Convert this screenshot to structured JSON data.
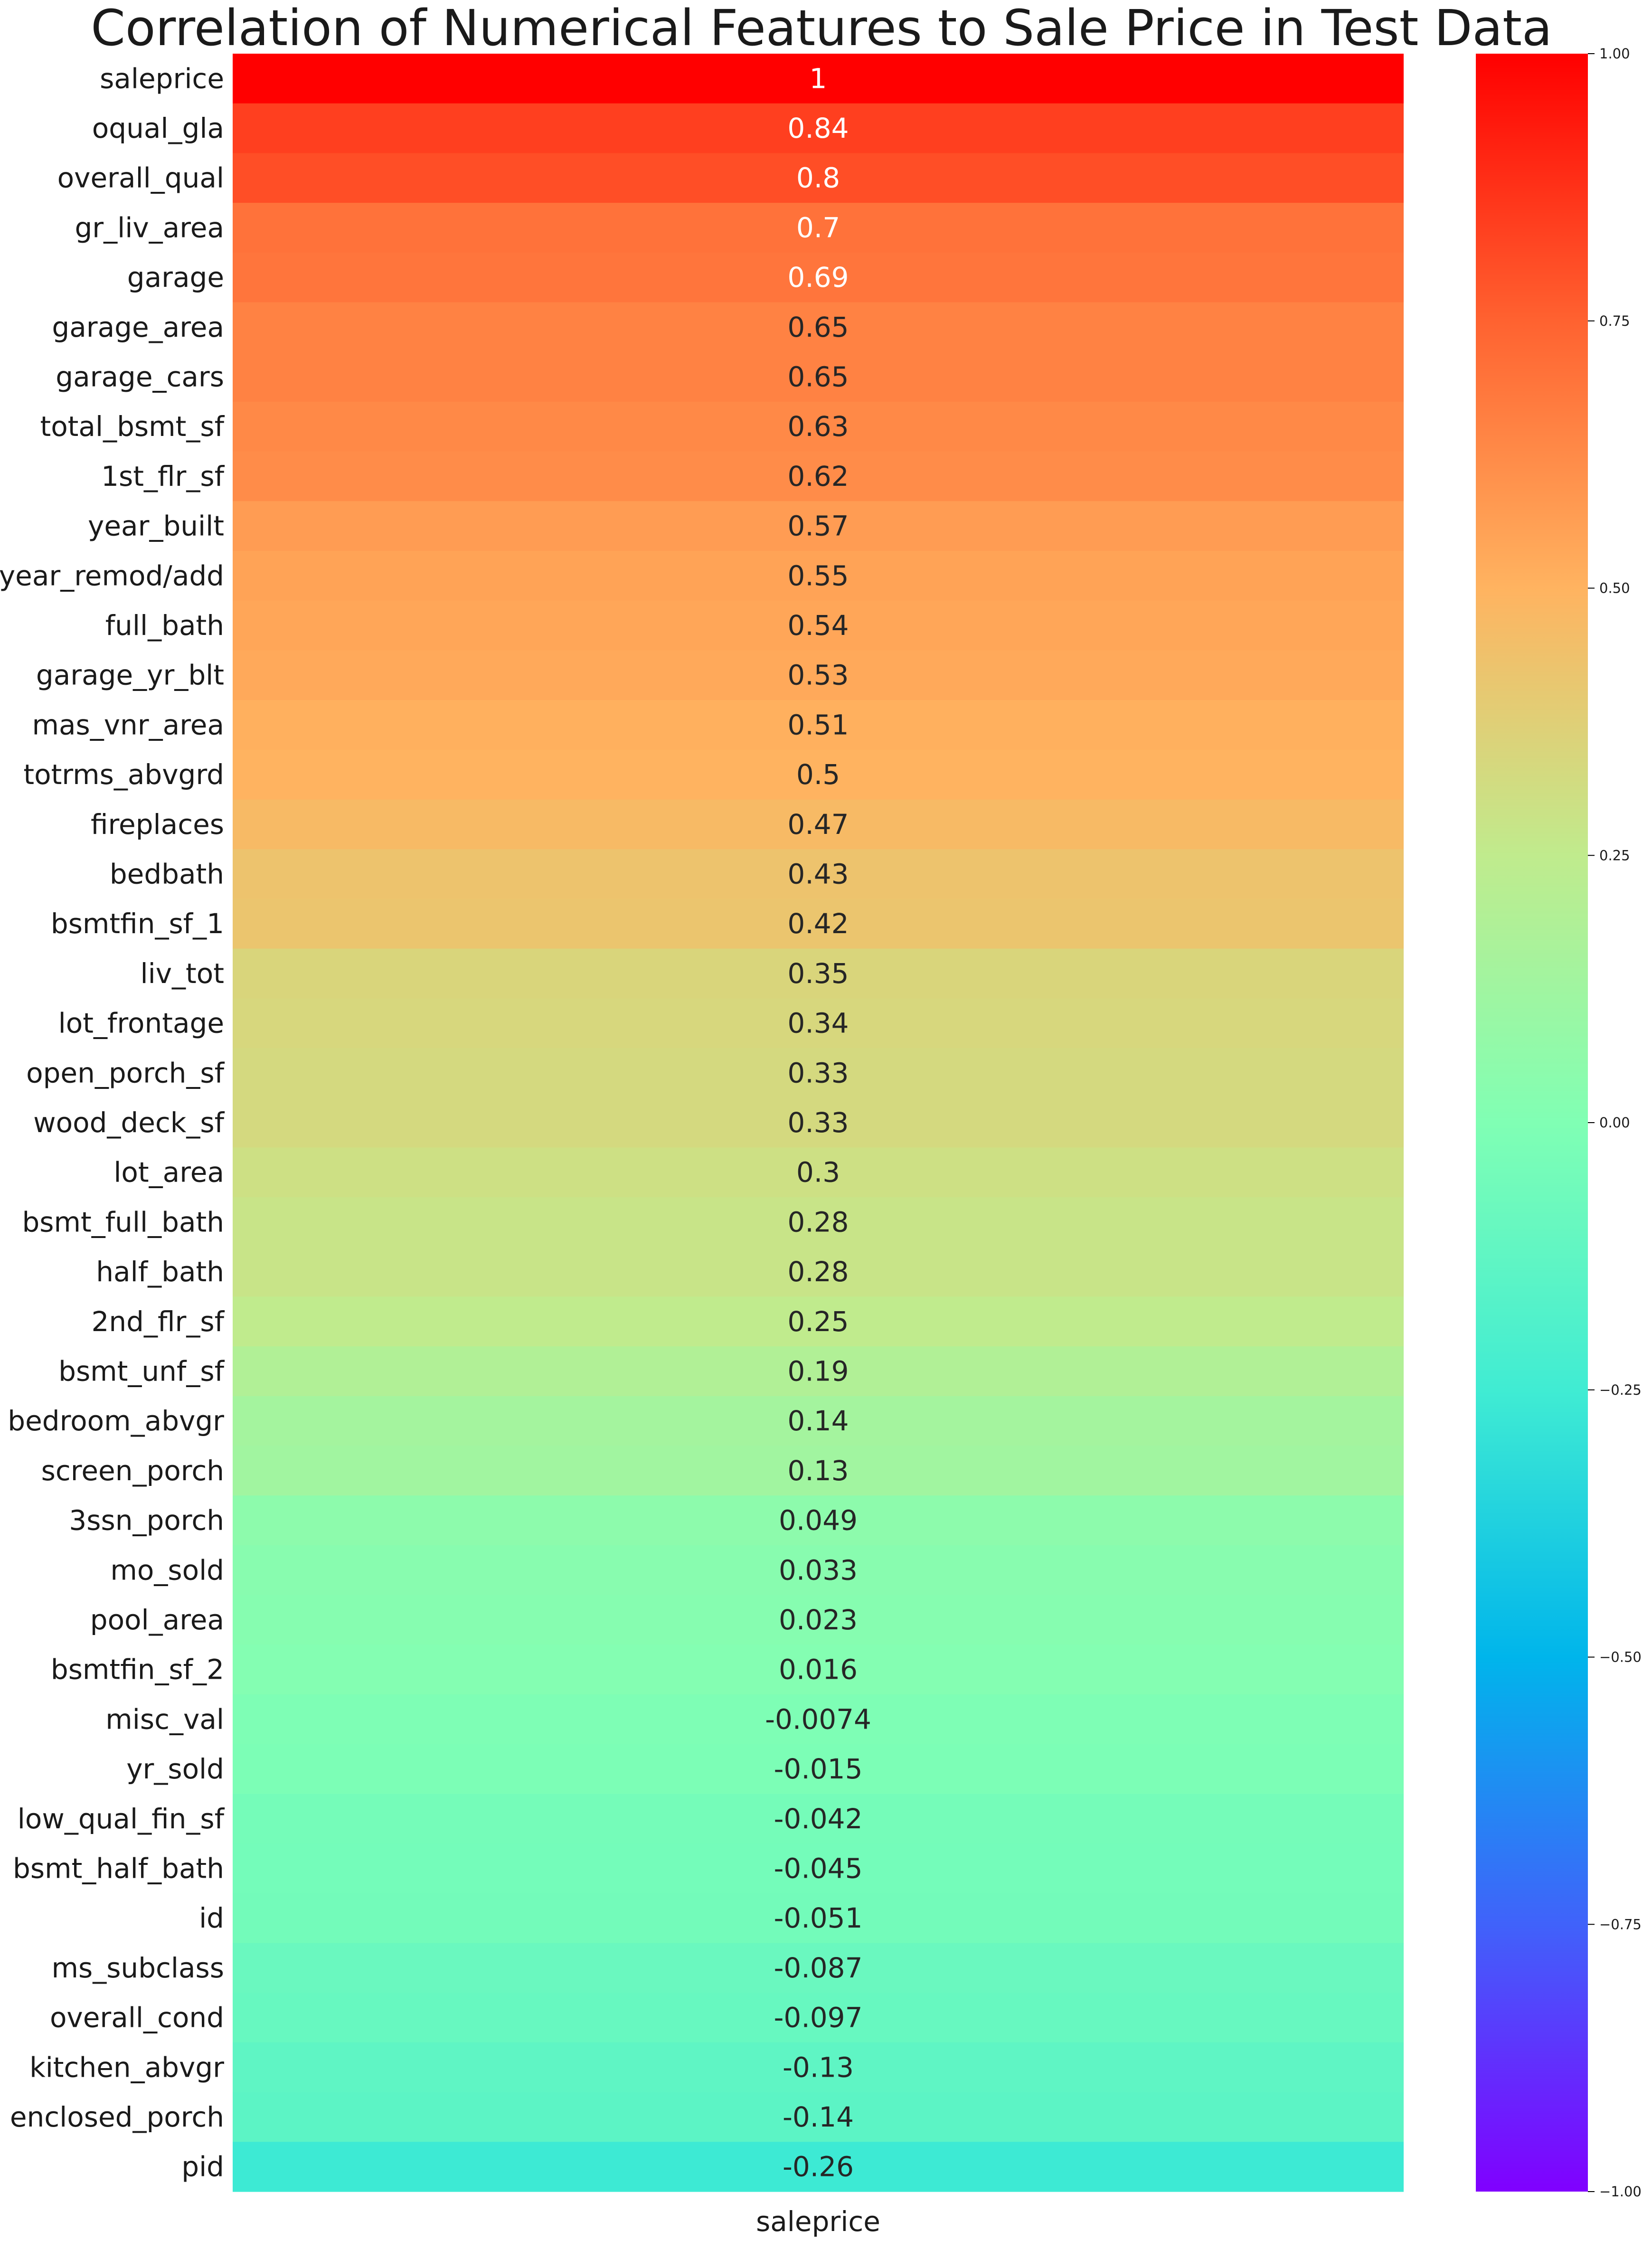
{
  "chart_data": {
    "type": "heatmap",
    "title": "Correlation of Numerical Features to Sale Price in Test Data",
    "columns": [
      "saleprice"
    ],
    "xtick_labels": [
      "saleprice"
    ],
    "rows": [
      "saleprice",
      "oqual_gla",
      "overall_qual",
      "gr_liv_area",
      "garage",
      "garage_area",
      "garage_cars",
      "total_bsmt_sf",
      "1st_flr_sf",
      "year_built",
      "year_remod/add",
      "full_bath",
      "garage_yr_blt",
      "mas_vnr_area",
      "totrms_abvgrd",
      "fireplaces",
      "bedbath",
      "bsmtfin_sf_1",
      "liv_tot",
      "lot_frontage",
      "open_porch_sf",
      "wood_deck_sf",
      "lot_area",
      "bsmt_full_bath",
      "half_bath",
      "2nd_flr_sf",
      "bsmt_unf_sf",
      "bedroom_abvgr",
      "screen_porch",
      "3ssn_porch",
      "mo_sold",
      "pool_area",
      "bsmtfin_sf_2",
      "misc_val",
      "yr_sold",
      "low_qual_fin_sf",
      "bsmt_half_bath",
      "id",
      "ms_subclass",
      "overall_cond",
      "kitchen_abvgr",
      "enclosed_porch",
      "pid"
    ],
    "values": [
      1,
      0.84,
      0.8,
      0.7,
      0.69,
      0.65,
      0.65,
      0.63,
      0.62,
      0.57,
      0.55,
      0.54,
      0.53,
      0.51,
      0.5,
      0.47,
      0.43,
      0.42,
      0.35,
      0.34,
      0.33,
      0.33,
      0.3,
      0.28,
      0.28,
      0.25,
      0.19,
      0.14,
      0.13,
      0.049,
      0.033,
      0.023,
      0.016,
      -0.0074,
      -0.015,
      -0.042,
      -0.045,
      -0.051,
      -0.087,
      -0.097,
      -0.13,
      -0.14,
      -0.26
    ],
    "value_labels": [
      "1",
      "0.84",
      "0.8",
      "0.7",
      "0.69",
      "0.65",
      "0.65",
      "0.63",
      "0.62",
      "0.57",
      "0.55",
      "0.54",
      "0.53",
      "0.51",
      "0.5",
      "0.47",
      "0.43",
      "0.42",
      "0.35",
      "0.34",
      "0.33",
      "0.33",
      "0.3",
      "0.28",
      "0.28",
      "0.25",
      "0.19",
      "0.14",
      "0.13",
      "0.049",
      "0.033",
      "0.023",
      "0.016",
      "-0.0074",
      "-0.015",
      "-0.042",
      "-0.045",
      "-0.051",
      "-0.087",
      "-0.097",
      "-0.13",
      "-0.14",
      "-0.26"
    ],
    "colormap": "rainbow",
    "colorbar": {
      "range": [
        -1,
        1
      ],
      "ticks": [
        1,
        0.75,
        0.5,
        0.25,
        0,
        -0.25,
        -0.5,
        -0.75,
        -1
      ],
      "tick_labels": [
        "1.00",
        "0.75",
        "0.50",
        "0.25",
        "0.00",
        "−0.25",
        "−0.50",
        "−0.75",
        "−1.00"
      ]
    }
  }
}
